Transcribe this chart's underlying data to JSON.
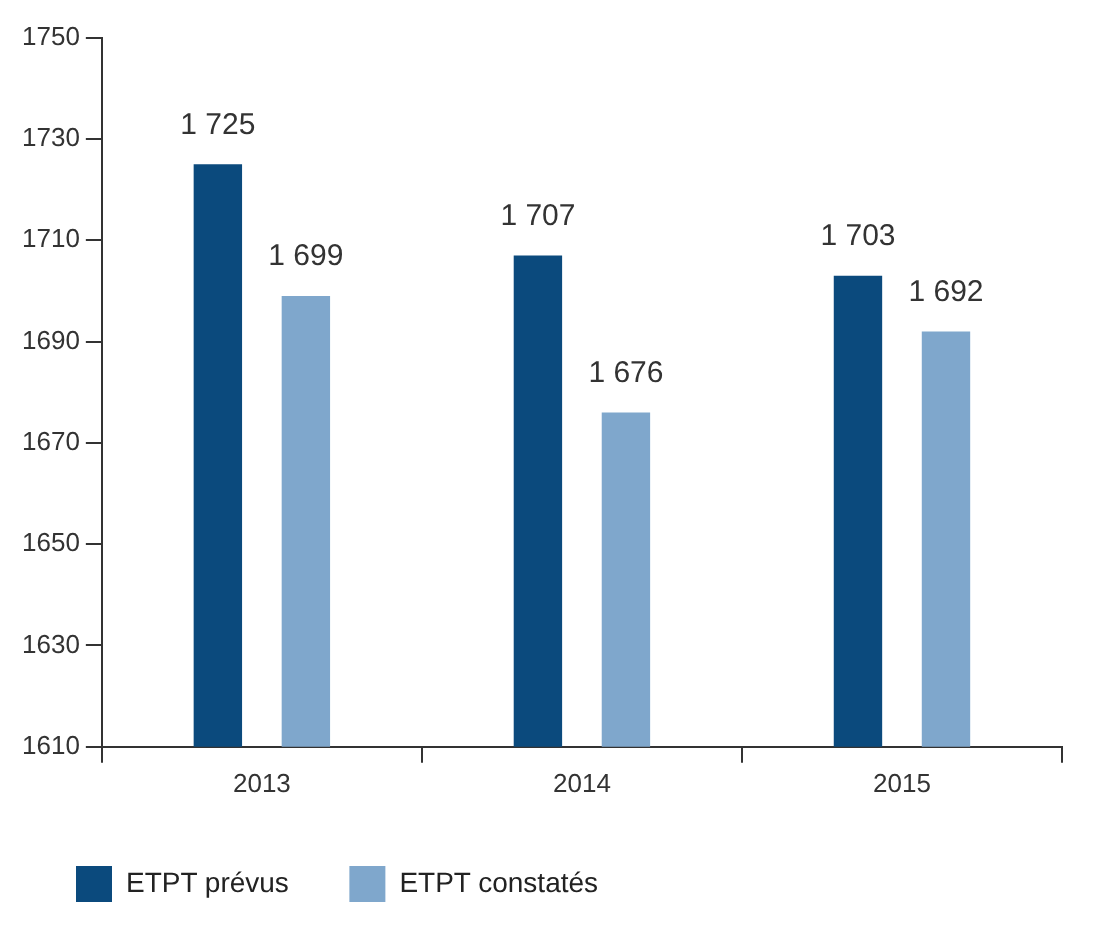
{
  "chart_data": {
    "type": "bar",
    "categories": [
      "2013",
      "2014",
      "2015"
    ],
    "series": [
      {
        "name": "ETPT prévus",
        "color": "#0b4a7d",
        "values": [
          1725,
          1707,
          1703
        ],
        "value_labels": [
          "1 725",
          "1 707",
          "1 703"
        ]
      },
      {
        "name": "ETPT constatés",
        "color": "#7fa7cc",
        "values": [
          1699,
          1676,
          1692
        ],
        "value_labels": [
          "1 699",
          "1 676",
          "1 692"
        ]
      }
    ],
    "ylim": [
      1610,
      1750
    ],
    "yticks": [
      1610,
      1630,
      1650,
      1670,
      1690,
      1710,
      1730,
      1750
    ],
    "legend": "bottom"
  }
}
